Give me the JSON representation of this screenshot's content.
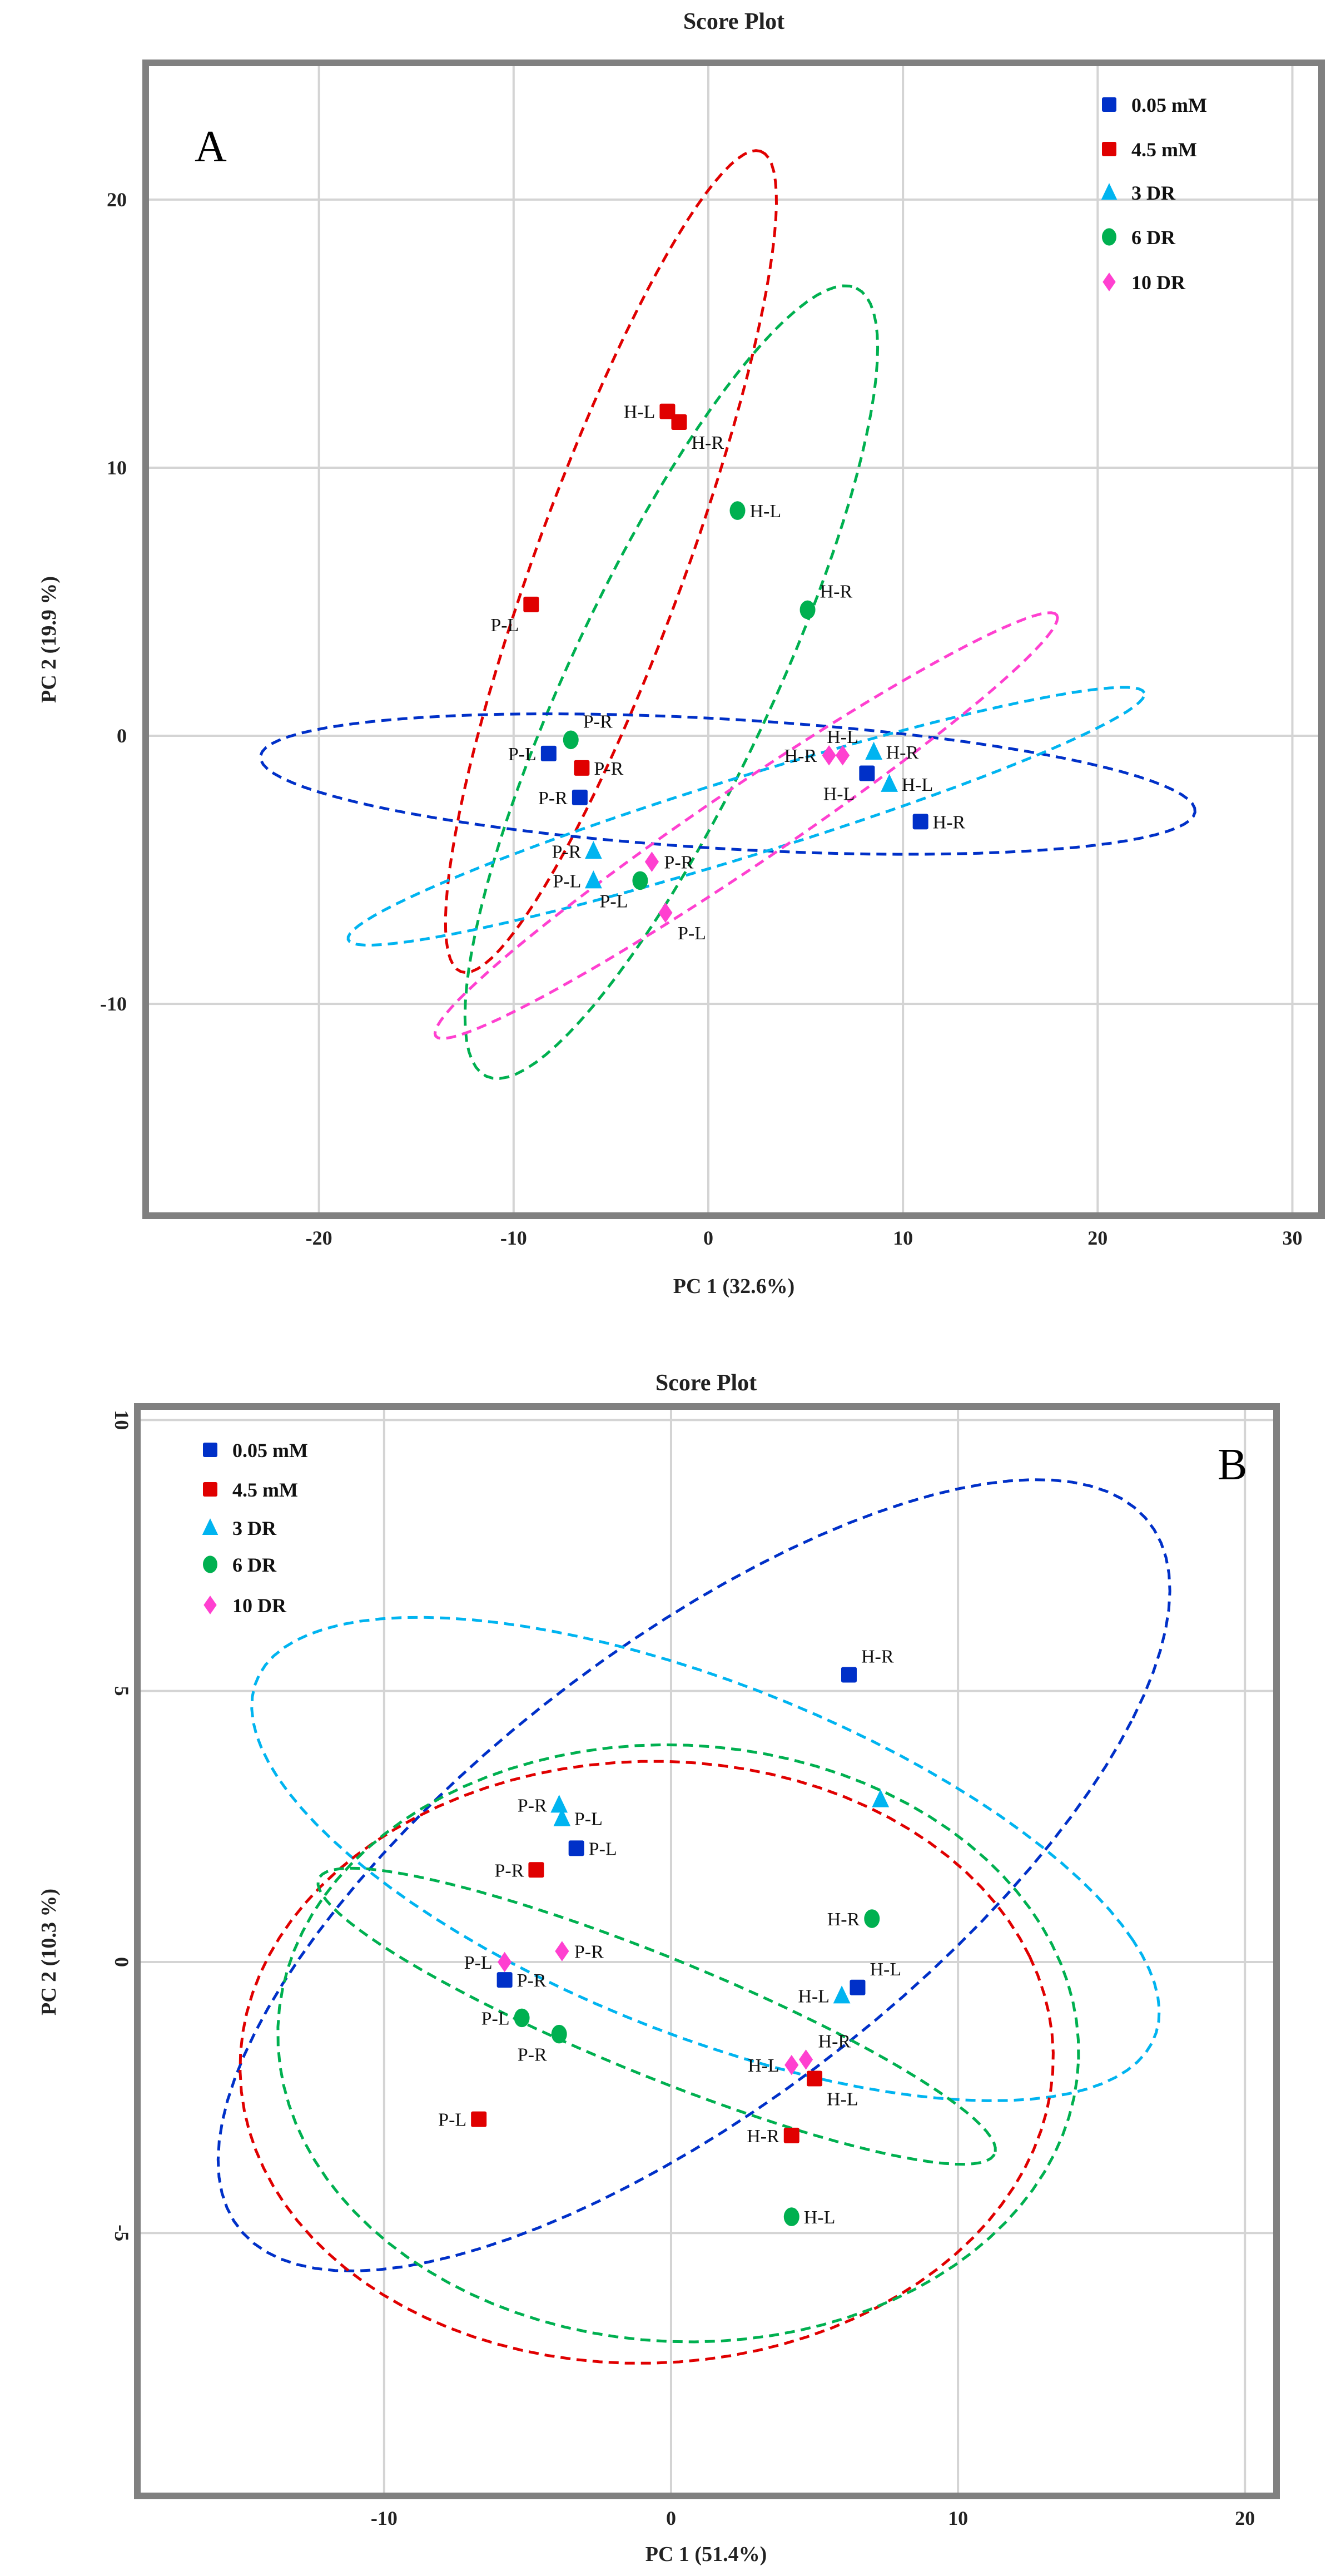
{
  "chart_data": [
    {
      "type": "scatter",
      "title": "Score Plot",
      "panel": "A",
      "xlabel": "PC 1 (32.6%)",
      "ylabel": "PC 2 (19.9 %)",
      "xlim": [
        -28.9,
        31.5
      ],
      "ylim": [
        -17.9,
        25.1
      ],
      "xticks": [
        -20,
        -10,
        0,
        10,
        20,
        30
      ],
      "yticks": [
        -10,
        0,
        10,
        20
      ],
      "grid": true,
      "legend_position": "top-right",
      "series": [
        {
          "name": "0.05 mM",
          "color": "#0030c8",
          "marker": "square",
          "points": [
            {
              "x": -8.2,
              "y": -0.66,
              "label": "P-L",
              "label_side": "left"
            },
            {
              "x": -6.6,
              "y": -2.3,
              "label": "P-R",
              "label_side": "left"
            },
            {
              "x": 8.15,
              "y": -1.4,
              "label": "H-L",
              "label_side": "below-left"
            },
            {
              "x": 10.9,
              "y": -3.2,
              "label": "H-R",
              "label_side": "right"
            }
          ]
        },
        {
          "name": "4.5 mM",
          "color": "#e00000",
          "marker": "square",
          "points": [
            {
              "x": -2.1,
              "y": 12.1,
              "label": "H-L",
              "label_side": "left"
            },
            {
              "x": -1.5,
              "y": 11.7,
              "label": "H-R",
              "label_side": "below-right"
            },
            {
              "x": -9.1,
              "y": 4.9,
              "label": "P-L",
              "label_side": "below-left"
            },
            {
              "x": -6.5,
              "y": -1.2,
              "label": "P-R",
              "label_side": "right"
            }
          ]
        },
        {
          "name": "3 DR",
          "color": "#00b4f0",
          "marker": "triangle",
          "points": [
            {
              "x": -5.9,
              "y": -4.3,
              "label": "P-R",
              "label_side": "left"
            },
            {
              "x": -5.9,
              "y": -5.4,
              "label": "P-L",
              "label_side": "left"
            },
            {
              "x": 8.5,
              "y": -0.6,
              "label": "H-R",
              "label_side": "right"
            },
            {
              "x": 9.3,
              "y": -1.8,
              "label": "H-L",
              "label_side": "right"
            }
          ]
        },
        {
          "name": "6 DR",
          "color": "#00b050",
          "marker": "circle",
          "points": [
            {
              "x": 1.5,
              "y": 8.4,
              "label": "H-L",
              "label_side": "right"
            },
            {
              "x": 5.1,
              "y": 4.7,
              "label": "H-R",
              "label_side": "above-right"
            },
            {
              "x": -7.06,
              "y": -0.15,
              "label": "P-R",
              "label_side": "above-right"
            },
            {
              "x": -3.5,
              "y": -5.4,
              "label": "P-L",
              "label_side": "below-left"
            }
          ]
        },
        {
          "name": "10 DR",
          "color": "#ff40d0",
          "marker": "diamond",
          "points": [
            {
              "x": 6.2,
              "y": -0.73,
              "label": "H-R",
              "label_side": "left"
            },
            {
              "x": 6.9,
              "y": -0.73,
              "label": "H-L",
              "label_side": "above"
            },
            {
              "x": -2.9,
              "y": -4.7,
              "label": "P-R",
              "label_side": "right"
            },
            {
              "x": -2.2,
              "y": -6.6,
              "label": "P-L",
              "label_side": "below-right"
            }
          ]
        }
      ],
      "ellipses": [
        {
          "series": "4.5 mM",
          "center": [
            -5,
            6.5
          ],
          "axis_u": [
            7.7,
            15.3
          ],
          "axis_v": [
            3.6,
            -0.95
          ]
        },
        {
          "series": "6 DR",
          "center": [
            -1.9,
            2
          ],
          "axis_u": [
            9.5,
            14.7
          ],
          "axis_v": [
            4.7,
            -1.6
          ]
        },
        {
          "series": "0.05 mM",
          "center": [
            1,
            -1.8
          ],
          "axis_u": [
            24,
            -1.05
          ],
          "axis_v": [
            0.5,
            2.4
          ]
        },
        {
          "series": "3 DR",
          "center": [
            1.95,
            -3.0
          ],
          "axis_u": [
            20.45,
            4.6
          ],
          "axis_v": [
            -0.6,
            1.4
          ]
        },
        {
          "series": "10 DR",
          "center": [
            1.95,
            -3.35
          ],
          "axis_u": [
            15.95,
            7.85
          ],
          "axis_v": [
            -1.1,
            1.2
          ]
        }
      ]
    },
    {
      "type": "scatter",
      "title": "Score Plot",
      "panel": "B",
      "xlabel": "PC 1 (51.4%)",
      "ylabel": "PC 2 (10.3 %)",
      "xlim": [
        -18.6,
        21.1
      ],
      "ylim": [
        -9.85,
        10.25
      ],
      "xticks": [
        -10,
        0,
        10,
        20
      ],
      "yticks": [
        -5,
        0,
        5,
        10
      ],
      "grid": true,
      "legend_position": "top-left",
      "series": [
        {
          "name": "0.05 mM",
          "color": "#0030c8",
          "marker": "square",
          "points": [
            {
              "x": 6.2,
              "y": 5.3,
              "label": "H-R",
              "label_side": "above-right"
            },
            {
              "x": -3.3,
              "y": 2.1,
              "label": "P-L",
              "label_side": "right"
            },
            {
              "x": -5.8,
              "y": -0.33,
              "label": "P-R",
              "label_side": "right"
            },
            {
              "x": 6.5,
              "y": -0.47,
              "label": "H-L",
              "label_side": "above-right"
            }
          ]
        },
        {
          "name": "4.5 mM",
          "color": "#e00000",
          "marker": "square",
          "points": [
            {
              "x": -4.7,
              "y": 1.7,
              "label": "P-R",
              "label_side": "left"
            },
            {
              "x": 5.0,
              "y": -2.15,
              "label": "H-L",
              "label_side": "below-right"
            },
            {
              "x": -6.7,
              "y": -2.9,
              "label": "P-L",
              "label_side": "left"
            },
            {
              "x": 4.2,
              "y": -3.2,
              "label": "H-R",
              "label_side": "left"
            }
          ]
        },
        {
          "name": "3 DR",
          "color": "#00b4f0",
          "marker": "triangle",
          "points": [
            {
              "x": -3.9,
              "y": 2.9,
              "label": "P-R",
              "label_side": "left"
            },
            {
              "x": -3.8,
              "y": 2.65,
              "label": "P-L",
              "label_side": "right"
            },
            {
              "x": 7.3,
              "y": 3.0,
              "label": null,
              "label_side": null
            },
            {
              "x": 5.95,
              "y": -0.62,
              "label": "H-L",
              "label_side": "left"
            }
          ]
        },
        {
          "name": "6 DR",
          "color": "#00b050",
          "marker": "circle",
          "points": [
            {
              "x": 7.0,
              "y": 0.8,
              "label": "H-R",
              "label_side": "left"
            },
            {
              "x": -5.2,
              "y": -1.03,
              "label": "P-L",
              "label_side": "left"
            },
            {
              "x": -3.9,
              "y": -1.33,
              "label": "P-R",
              "label_side": "below-left"
            },
            {
              "x": 4.2,
              "y": -4.7,
              "label": "H-L",
              "label_side": "right"
            }
          ]
        },
        {
          "name": "10 DR",
          "color": "#ff40d0",
          "marker": "diamond",
          "points": [
            {
              "x": -5.8,
              "y": 0.0,
              "label": "P-L",
              "label_side": "left"
            },
            {
              "x": -3.8,
              "y": 0.2,
              "label": "P-R",
              "label_side": "right"
            },
            {
              "x": 4.2,
              "y": -1.9,
              "label": "H-L",
              "label_side": "left"
            },
            {
              "x": 4.7,
              "y": -1.8,
              "label": "H-R",
              "label_side": "above-right"
            }
          ]
        }
      ],
      "ellipses": [
        {
          "series": "0.05 mM",
          "center": [
            0.8,
            1.6
          ],
          "axis_u": [
            15.3,
            2.9
          ],
          "axis_v": [
            6.4,
            6.7
          ]
        },
        {
          "series": "3 DR",
          "center": [
            1.2,
            1.9
          ],
          "axis_u": [
            14.9,
            -1.5
          ],
          "axis_v": [
            -5.3,
            4.2
          ]
        },
        {
          "series": "4.5 mM",
          "center": [
            -0.85,
            -1.85
          ],
          "axis_u": [
            13.35,
            1.95
          ],
          "axis_v": [
            -4.75,
            5.2
          ]
        },
        {
          "series": "6 DR",
          "center": [
            0.25,
            -1.5
          ],
          "axis_u": [
            13.95,
            -0.3
          ],
          "axis_v": [
            0.35,
            5.5
          ]
        },
        {
          "series": "6 DR",
          "center": [
            -0.5,
            -1.0
          ],
          "axis_u": [
            11.8,
            -2.5
          ],
          "axis_v": [
            0.4,
            1.1
          ]
        }
      ]
    }
  ]
}
